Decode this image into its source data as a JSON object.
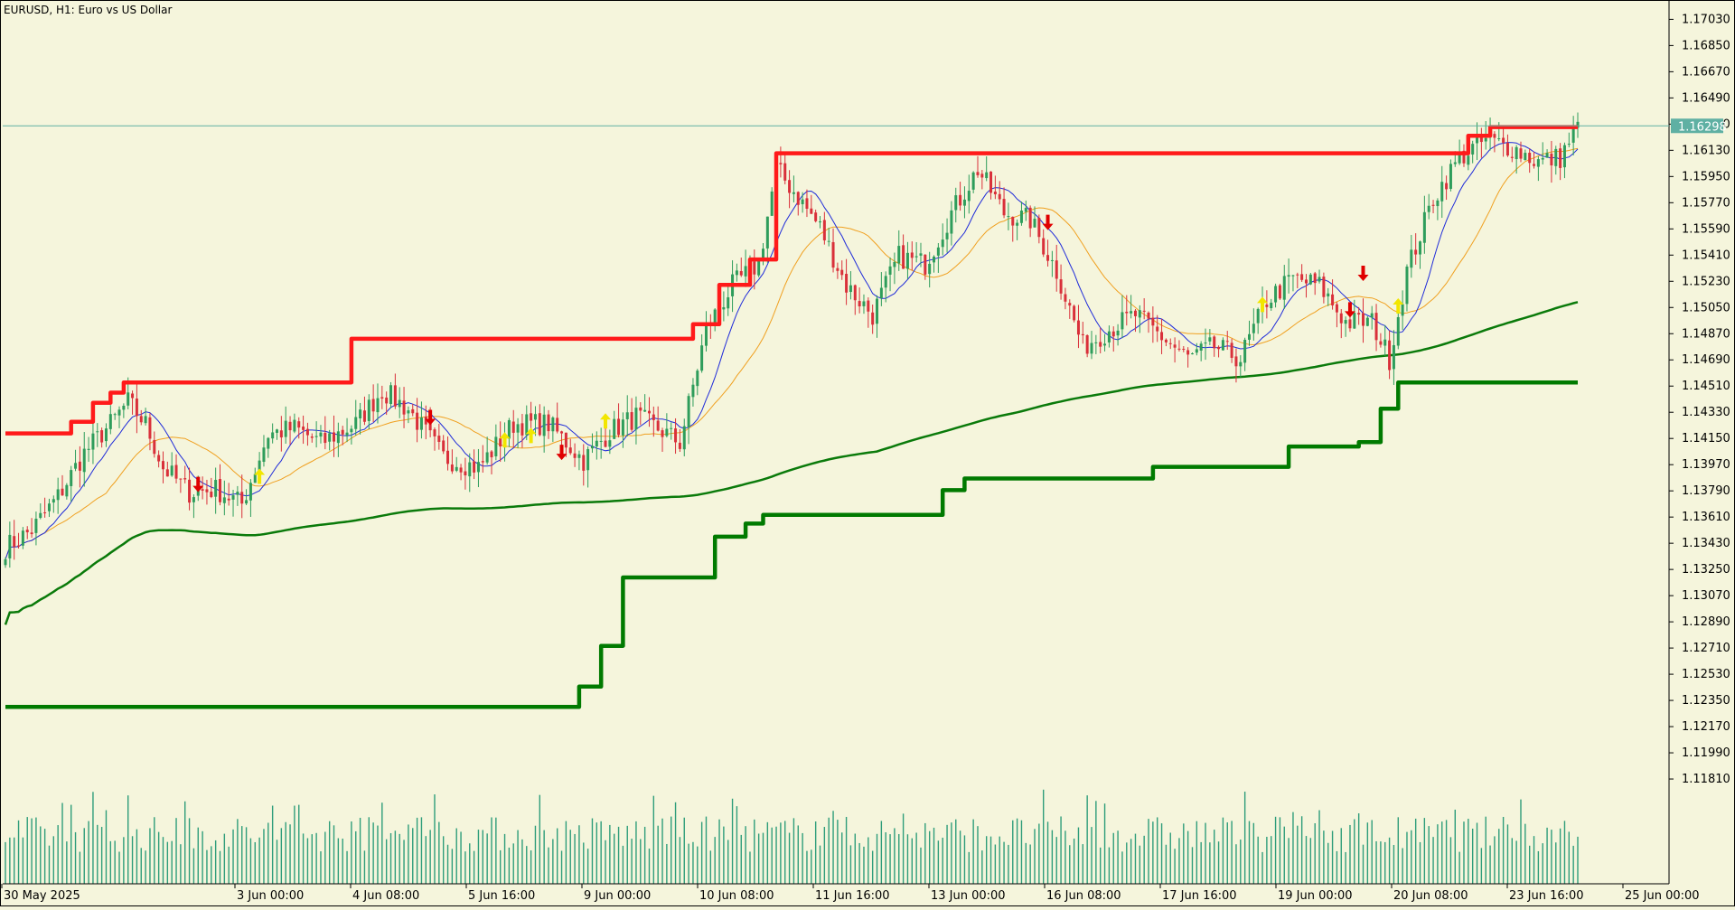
{
  "header": {
    "title": "EURUSD, H1:  Euro vs US Dollar"
  },
  "colors": {
    "background": "#f5f5dc",
    "bull_candle": "#2e9d5b",
    "bear_candle": "#d9303a",
    "resistance": "#ff1a1a",
    "support": "#007a00",
    "ma_fast": "#1f2bd9",
    "ma_medium": "#f0a020",
    "ma_slow": "#0a7a0a",
    "volume": "#2e9d7a",
    "price_line": "#5fb0a3",
    "buy_arrow": "#f2e600",
    "sell_arrow": "#e00000"
  },
  "chart_data": {
    "type": "candlestick",
    "symbol": "EURUSD",
    "timeframe": "H1",
    "description": "Euro vs US Dollar",
    "ylim": [
      1.1109,
      1.17138
    ],
    "y_ticks": [
      "1.17030",
      "1.16850",
      "1.16670",
      "1.16490",
      "1.16310",
      "1.16130",
      "1.15950",
      "1.15770",
      "1.15590",
      "1.15410",
      "1.15230",
      "1.15050",
      "1.14870",
      "1.14690",
      "1.14510",
      "1.14330",
      "1.14150",
      "1.13970",
      "1.13790",
      "1.13610",
      "1.13430",
      "1.13250",
      "1.13070",
      "1.12890",
      "1.12710",
      "1.12530",
      "1.12350",
      "1.12170",
      "1.11990",
      "1.11810"
    ],
    "x_labels": [
      "30 May 2025",
      "3 Jun 00:00",
      "4 Jun 08:00",
      "5 Jun 16:00",
      "9 Jun 00:00",
      "10 Jun 08:00",
      "11 Jun 16:00",
      "13 Jun 00:00",
      "16 Jun 08:00",
      "17 Jun 16:00",
      "19 Jun 00:00",
      "20 Jun 08:00",
      "23 Jun 16:00",
      "25 Jun 00:00"
    ],
    "bar_count": 360,
    "current_price": "1.16298",
    "close_anchors": [
      {
        "i": 0,
        "v": 1.134
      },
      {
        "i": 6,
        "v": 1.1352
      },
      {
        "i": 12,
        "v": 1.1375
      },
      {
        "i": 18,
        "v": 1.1405
      },
      {
        "i": 24,
        "v": 1.1425
      },
      {
        "i": 28,
        "v": 1.144
      },
      {
        "i": 32,
        "v": 1.1425
      },
      {
        "i": 36,
        "v": 1.1395
      },
      {
        "i": 42,
        "v": 1.1378
      },
      {
        "i": 48,
        "v": 1.138
      },
      {
        "i": 54,
        "v": 1.137
      },
      {
        "i": 60,
        "v": 1.1418
      },
      {
        "i": 66,
        "v": 1.1422
      },
      {
        "i": 72,
        "v": 1.1412
      },
      {
        "i": 80,
        "v": 1.1425
      },
      {
        "i": 86,
        "v": 1.1448
      },
      {
        "i": 92,
        "v": 1.1435
      },
      {
        "i": 100,
        "v": 1.1402
      },
      {
        "i": 108,
        "v": 1.1395
      },
      {
        "i": 116,
        "v": 1.1425
      },
      {
        "i": 124,
        "v": 1.1425
      },
      {
        "i": 132,
        "v": 1.14
      },
      {
        "i": 138,
        "v": 1.142
      },
      {
        "i": 144,
        "v": 1.143
      },
      {
        "i": 150,
        "v": 1.142
      },
      {
        "i": 154,
        "v": 1.1412
      },
      {
        "i": 160,
        "v": 1.149
      },
      {
        "i": 166,
        "v": 1.152
      },
      {
        "i": 172,
        "v": 1.1535
      },
      {
        "i": 176,
        "v": 1.16
      },
      {
        "i": 180,
        "v": 1.1585
      },
      {
        "i": 186,
        "v": 1.156
      },
      {
        "i": 192,
        "v": 1.152
      },
      {
        "i": 198,
        "v": 1.15
      },
      {
        "i": 204,
        "v": 1.154
      },
      {
        "i": 210,
        "v": 1.1535
      },
      {
        "i": 216,
        "v": 1.157
      },
      {
        "i": 222,
        "v": 1.16
      },
      {
        "i": 228,
        "v": 1.157
      },
      {
        "i": 234,
        "v": 1.1565
      },
      {
        "i": 240,
        "v": 1.153
      },
      {
        "i": 246,
        "v": 1.1478
      },
      {
        "i": 252,
        "v": 1.149
      },
      {
        "i": 258,
        "v": 1.15
      },
      {
        "i": 264,
        "v": 1.1485
      },
      {
        "i": 270,
        "v": 1.147
      },
      {
        "i": 276,
        "v": 1.1478
      },
      {
        "i": 282,
        "v": 1.147
      },
      {
        "i": 288,
        "v": 1.151
      },
      {
        "i": 294,
        "v": 1.1525
      },
      {
        "i": 300,
        "v": 1.152
      },
      {
        "i": 306,
        "v": 1.1495
      },
      {
        "i": 312,
        "v": 1.1495
      },
      {
        "i": 316,
        "v": 1.147
      },
      {
        "i": 320,
        "v": 1.153
      },
      {
        "i": 326,
        "v": 1.158
      },
      {
        "i": 332,
        "v": 1.1608
      },
      {
        "i": 338,
        "v": 1.162
      },
      {
        "i": 344,
        "v": 1.1615
      },
      {
        "i": 350,
        "v": 1.1605
      },
      {
        "i": 355,
        "v": 1.1608
      },
      {
        "i": 359,
        "v": 1.163
      }
    ],
    "resistance_steps": [
      {
        "i": 0,
        "v": 1.14185
      },
      {
        "i": 15,
        "v": 1.14265
      },
      {
        "i": 20,
        "v": 1.14395
      },
      {
        "i": 24,
        "v": 1.14465
      },
      {
        "i": 27,
        "v": 1.14535
      },
      {
        "i": 79,
        "v": 1.14835
      },
      {
        "i": 157,
        "v": 1.14935
      },
      {
        "i": 163,
        "v": 1.15205
      },
      {
        "i": 170,
        "v": 1.1538
      },
      {
        "i": 176,
        "v": 1.1611
      },
      {
        "i": 334,
        "v": 1.1623
      },
      {
        "i": 339,
        "v": 1.1629
      }
    ],
    "support_steps": [
      {
        "i": 0,
        "v": 1.12305
      },
      {
        "i": 131,
        "v": 1.12445
      },
      {
        "i": 136,
        "v": 1.12725
      },
      {
        "i": 141,
        "v": 1.13195
      },
      {
        "i": 162,
        "v": 1.13475
      },
      {
        "i": 169,
        "v": 1.13565
      },
      {
        "i": 173,
        "v": 1.13625
      },
      {
        "i": 214,
        "v": 1.13795
      },
      {
        "i": 219,
        "v": 1.13875
      },
      {
        "i": 262,
        "v": 1.13955
      },
      {
        "i": 293,
        "v": 1.14095
      },
      {
        "i": 309,
        "v": 1.14125
      },
      {
        "i": 314,
        "v": 1.14355
      },
      {
        "i": 318,
        "v": 1.14535
      }
    ],
    "signals": [
      {
        "i": 44,
        "type": "sell",
        "v": 1.138
      },
      {
        "i": 58,
        "type": "buy",
        "v": 1.139
      },
      {
        "i": 97,
        "type": "sell",
        "v": 1.1426
      },
      {
        "i": 114,
        "type": "buy",
        "v": 1.1415
      },
      {
        "i": 120,
        "type": "buy",
        "v": 1.1418
      },
      {
        "i": 127,
        "type": "sell",
        "v": 1.1402
      },
      {
        "i": 137,
        "type": "buy",
        "v": 1.1428
      },
      {
        "i": 238,
        "type": "sell",
        "v": 1.156
      },
      {
        "i": 287,
        "type": "buy",
        "v": 1.1508
      },
      {
        "i": 307,
        "type": "sell",
        "v": 1.15
      },
      {
        "i": 310,
        "type": "sell",
        "v": 1.1525
      },
      {
        "i": 318,
        "type": "buy",
        "v": 1.1507
      }
    ],
    "legend_placement": "none",
    "grid": false
  }
}
